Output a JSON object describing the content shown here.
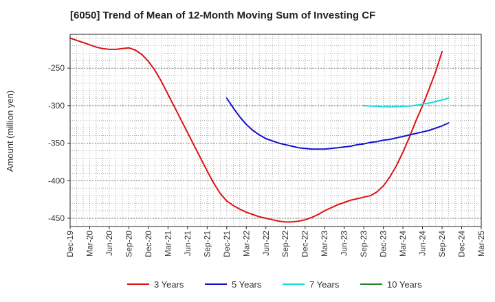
{
  "chart_data": {
    "type": "line",
    "title": "[6050]  Trend of Mean of 12-Month Moving Sum of Investing CF",
    "xlabel": "",
    "ylabel": "Amount (million yen)",
    "ylim": [
      -461,
      -205
    ],
    "yticks": [
      -250,
      -300,
      -350,
      -400,
      -450
    ],
    "x_tick_labels": [
      "Dec-19",
      "Mar-20",
      "Jun-20",
      "Sep-20",
      "Dec-20",
      "Mar-21",
      "Jun-21",
      "Sep-21",
      "Dec-21",
      "Mar-22",
      "Jun-22",
      "Sep-22",
      "Dec-22",
      "Mar-23",
      "Jun-23",
      "Sep-23",
      "Dec-23",
      "Mar-24",
      "Jun-24",
      "Sep-24",
      "Dec-24",
      "Mar-25"
    ],
    "grid": true,
    "legend_position": "bottom",
    "series": [
      {
        "name": "3 Years",
        "color": "#dd1111",
        "points": [
          [
            "Dec-19",
            -210
          ],
          [
            "Jan-20",
            -213
          ],
          [
            "Feb-20",
            -216
          ],
          [
            "Mar-20",
            -219
          ],
          [
            "Apr-20",
            -222
          ],
          [
            "May-20",
            -224
          ],
          [
            "Jun-20",
            -225
          ],
          [
            "Jul-20",
            -225
          ],
          [
            "Aug-20",
            -224
          ],
          [
            "Sep-20",
            -223
          ],
          [
            "Oct-20",
            -226
          ],
          [
            "Nov-20",
            -232
          ],
          [
            "Dec-20",
            -241
          ],
          [
            "Jan-21",
            -253
          ],
          [
            "Feb-21",
            -268
          ],
          [
            "Mar-21",
            -285
          ],
          [
            "Apr-21",
            -302
          ],
          [
            "May-21",
            -319
          ],
          [
            "Jun-21",
            -336
          ],
          [
            "Jul-21",
            -353
          ],
          [
            "Aug-21",
            -370
          ],
          [
            "Sep-21",
            -387
          ],
          [
            "Oct-21",
            -403
          ],
          [
            "Nov-21",
            -417
          ],
          [
            "Dec-21",
            -427
          ],
          [
            "Jan-22",
            -433
          ],
          [
            "Feb-22",
            -438
          ],
          [
            "Mar-22",
            -442
          ],
          [
            "Apr-22",
            -445
          ],
          [
            "May-22",
            -448
          ],
          [
            "Jun-22",
            -450
          ],
          [
            "Jul-22",
            -452
          ],
          [
            "Aug-22",
            -454
          ],
          [
            "Sep-22",
            -455
          ],
          [
            "Oct-22",
            -455
          ],
          [
            "Nov-22",
            -454
          ],
          [
            "Dec-22",
            -452
          ],
          [
            "Jan-23",
            -449
          ],
          [
            "Feb-23",
            -445
          ],
          [
            "Mar-23",
            -440
          ],
          [
            "Apr-23",
            -436
          ],
          [
            "May-23",
            -432
          ],
          [
            "Jun-23",
            -429
          ],
          [
            "Jul-23",
            -426
          ],
          [
            "Aug-23",
            -424
          ],
          [
            "Sep-23",
            -422
          ],
          [
            "Oct-23",
            -420
          ],
          [
            "Nov-23",
            -415
          ],
          [
            "Dec-23",
            -407
          ],
          [
            "Jan-24",
            -395
          ],
          [
            "Feb-24",
            -380
          ],
          [
            "Mar-24",
            -362
          ],
          [
            "Apr-24",
            -342
          ],
          [
            "May-24",
            -320
          ],
          [
            "Jun-24",
            -300
          ],
          [
            "Jul-24",
            -278
          ],
          [
            "Aug-24",
            -255
          ],
          [
            "Sep-24",
            -228
          ]
        ]
      },
      {
        "name": "5 Years",
        "color": "#1111cc",
        "points": [
          [
            "Dec-21",
            -290
          ],
          [
            "Jan-22",
            -303
          ],
          [
            "Feb-22",
            -315
          ],
          [
            "Mar-22",
            -325
          ],
          [
            "Apr-22",
            -333
          ],
          [
            "May-22",
            -339
          ],
          [
            "Jun-22",
            -344
          ],
          [
            "Jul-22",
            -347
          ],
          [
            "Aug-22",
            -350
          ],
          [
            "Sep-22",
            -352
          ],
          [
            "Oct-22",
            -354
          ],
          [
            "Nov-22",
            -356
          ],
          [
            "Dec-22",
            -357
          ],
          [
            "Jan-23",
            -358
          ],
          [
            "Feb-23",
            -358
          ],
          [
            "Mar-23",
            -358
          ],
          [
            "Apr-23",
            -357
          ],
          [
            "May-23",
            -356
          ],
          [
            "Jun-23",
            -355
          ],
          [
            "Jul-23",
            -354
          ],
          [
            "Aug-23",
            -352
          ],
          [
            "Sep-23",
            -351
          ],
          [
            "Oct-23",
            -349
          ],
          [
            "Nov-23",
            -348
          ],
          [
            "Dec-23",
            -346
          ],
          [
            "Jan-24",
            -345
          ],
          [
            "Feb-24",
            -343
          ],
          [
            "Mar-24",
            -341
          ],
          [
            "Apr-24",
            -339
          ],
          [
            "May-24",
            -337
          ],
          [
            "Jun-24",
            -335
          ],
          [
            "Jul-24",
            -333
          ],
          [
            "Aug-24",
            -330
          ],
          [
            "Sep-24",
            -327
          ],
          [
            "Oct-24",
            -323
          ]
        ]
      },
      {
        "name": "7 Years",
        "color": "#11dddd",
        "points": [
          [
            "Sep-23",
            -300
          ],
          [
            "Oct-23",
            -300.5
          ],
          [
            "Nov-23",
            -301
          ],
          [
            "Dec-23",
            -301.5
          ],
          [
            "Jan-24",
            -301.5
          ],
          [
            "Feb-24",
            -301.5
          ],
          [
            "Mar-24",
            -301
          ],
          [
            "Apr-24",
            -300.5
          ],
          [
            "May-24",
            -299.5
          ],
          [
            "Jun-24",
            -298
          ],
          [
            "Jul-24",
            -296.5
          ],
          [
            "Aug-24",
            -294.5
          ],
          [
            "Sep-24",
            -292.5
          ],
          [
            "Oct-24",
            -290
          ]
        ]
      },
      {
        "name": "10 Years",
        "color": "#228822",
        "points": []
      }
    ]
  }
}
